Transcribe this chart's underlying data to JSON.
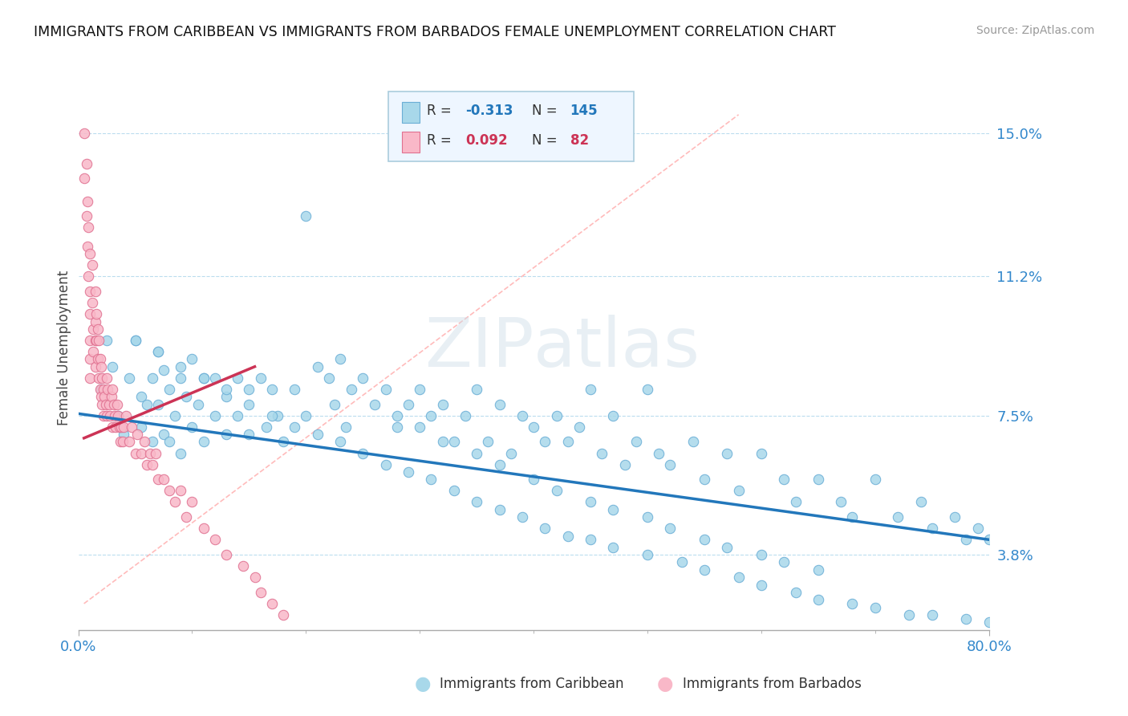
{
  "title": "IMMIGRANTS FROM CARIBBEAN VS IMMIGRANTS FROM BARBADOS FEMALE UNEMPLOYMENT CORRELATION CHART",
  "source": "Source: ZipAtlas.com",
  "ylabel": "Female Unemployment",
  "yticks": [
    0.038,
    0.075,
    0.112,
    0.15
  ],
  "ytick_labels": [
    "3.8%",
    "7.5%",
    "11.2%",
    "15.0%"
  ],
  "xlim": [
    0.0,
    0.8
  ],
  "ylim": [
    0.018,
    0.168
  ],
  "caribbean_color": "#A8D8EA",
  "caribbean_edge": "#6BAED6",
  "barbados_color": "#F9B8C8",
  "barbados_edge": "#E07090",
  "trend_caribbean_color": "#2277BB",
  "trend_barbados_color": "#CC3355",
  "ref_line_color": "#FFAAAA",
  "watermark_color": "#CCDDEE",
  "legend_bg": "#EEF6FF",
  "legend_edge": "#AACCDD",
  "caribbean_trend_x": [
    0.0,
    0.8
  ],
  "caribbean_trend_y": [
    0.0755,
    0.042
  ],
  "barbados_trend_x": [
    0.005,
    0.155
  ],
  "barbados_trend_y": [
    0.069,
    0.088
  ],
  "ref_line_x": [
    0.005,
    0.58
  ],
  "ref_line_y": [
    0.025,
    0.155
  ],
  "caribbean_x": [
    0.02,
    0.025,
    0.03,
    0.035,
    0.04,
    0.045,
    0.05,
    0.055,
    0.055,
    0.06,
    0.065,
    0.065,
    0.07,
    0.07,
    0.075,
    0.075,
    0.08,
    0.08,
    0.085,
    0.09,
    0.09,
    0.095,
    0.1,
    0.1,
    0.105,
    0.11,
    0.11,
    0.12,
    0.12,
    0.13,
    0.13,
    0.14,
    0.14,
    0.15,
    0.15,
    0.16,
    0.165,
    0.17,
    0.175,
    0.18,
    0.19,
    0.2,
    0.2,
    0.21,
    0.22,
    0.225,
    0.23,
    0.235,
    0.24,
    0.25,
    0.26,
    0.27,
    0.28,
    0.29,
    0.3,
    0.31,
    0.32,
    0.33,
    0.34,
    0.35,
    0.36,
    0.37,
    0.38,
    0.39,
    0.4,
    0.41,
    0.42,
    0.43,
    0.44,
    0.45,
    0.46,
    0.47,
    0.48,
    0.49,
    0.5,
    0.51,
    0.52,
    0.54,
    0.55,
    0.57,
    0.58,
    0.6,
    0.62,
    0.63,
    0.65,
    0.67,
    0.68,
    0.7,
    0.72,
    0.74,
    0.75,
    0.77,
    0.78,
    0.79,
    0.8,
    0.05,
    0.07,
    0.09,
    0.11,
    0.13,
    0.15,
    0.17,
    0.19,
    0.21,
    0.23,
    0.25,
    0.27,
    0.29,
    0.31,
    0.33,
    0.35,
    0.37,
    0.39,
    0.41,
    0.43,
    0.45,
    0.47,
    0.5,
    0.53,
    0.55,
    0.58,
    0.6,
    0.63,
    0.65,
    0.68,
    0.7,
    0.73,
    0.75,
    0.78,
    0.8,
    0.28,
    0.3,
    0.32,
    0.35,
    0.37,
    0.4,
    0.42,
    0.45,
    0.47,
    0.5,
    0.52,
    0.55,
    0.57,
    0.6,
    0.62,
    0.65
  ],
  "caribbean_y": [
    0.082,
    0.095,
    0.088,
    0.075,
    0.07,
    0.085,
    0.095,
    0.08,
    0.072,
    0.078,
    0.085,
    0.068,
    0.092,
    0.078,
    0.087,
    0.07,
    0.082,
    0.068,
    0.075,
    0.085,
    0.065,
    0.08,
    0.09,
    0.072,
    0.078,
    0.085,
    0.068,
    0.085,
    0.075,
    0.08,
    0.07,
    0.085,
    0.075,
    0.082,
    0.07,
    0.085,
    0.072,
    0.082,
    0.075,
    0.068,
    0.082,
    0.128,
    0.075,
    0.088,
    0.085,
    0.078,
    0.09,
    0.072,
    0.082,
    0.085,
    0.078,
    0.082,
    0.072,
    0.078,
    0.082,
    0.075,
    0.078,
    0.068,
    0.075,
    0.082,
    0.068,
    0.078,
    0.065,
    0.075,
    0.072,
    0.068,
    0.075,
    0.068,
    0.072,
    0.082,
    0.065,
    0.075,
    0.062,
    0.068,
    0.082,
    0.065,
    0.062,
    0.068,
    0.058,
    0.065,
    0.055,
    0.065,
    0.058,
    0.052,
    0.058,
    0.052,
    0.048,
    0.058,
    0.048,
    0.052,
    0.045,
    0.048,
    0.042,
    0.045,
    0.042,
    0.095,
    0.092,
    0.088,
    0.085,
    0.082,
    0.078,
    0.075,
    0.072,
    0.07,
    0.068,
    0.065,
    0.062,
    0.06,
    0.058,
    0.055,
    0.052,
    0.05,
    0.048,
    0.045,
    0.043,
    0.042,
    0.04,
    0.038,
    0.036,
    0.034,
    0.032,
    0.03,
    0.028,
    0.026,
    0.025,
    0.024,
    0.022,
    0.022,
    0.021,
    0.02,
    0.075,
    0.072,
    0.068,
    0.065,
    0.062,
    0.058,
    0.055,
    0.052,
    0.05,
    0.048,
    0.045,
    0.042,
    0.04,
    0.038,
    0.036,
    0.034
  ],
  "barbados_x": [
    0.005,
    0.005,
    0.007,
    0.007,
    0.008,
    0.008,
    0.009,
    0.009,
    0.01,
    0.01,
    0.01,
    0.01,
    0.01,
    0.01,
    0.012,
    0.012,
    0.013,
    0.013,
    0.015,
    0.015,
    0.015,
    0.015,
    0.016,
    0.016,
    0.017,
    0.017,
    0.018,
    0.018,
    0.019,
    0.019,
    0.02,
    0.02,
    0.021,
    0.021,
    0.022,
    0.022,
    0.023,
    0.024,
    0.025,
    0.025,
    0.026,
    0.027,
    0.028,
    0.029,
    0.03,
    0.03,
    0.031,
    0.032,
    0.033,
    0.034,
    0.035,
    0.036,
    0.037,
    0.038,
    0.039,
    0.04,
    0.042,
    0.045,
    0.047,
    0.05,
    0.052,
    0.055,
    0.058,
    0.06,
    0.063,
    0.065,
    0.068,
    0.07,
    0.075,
    0.08,
    0.085,
    0.09,
    0.095,
    0.1,
    0.11,
    0.12,
    0.13,
    0.145,
    0.155,
    0.16,
    0.17,
    0.18
  ],
  "barbados_y": [
    0.15,
    0.138,
    0.142,
    0.128,
    0.132,
    0.12,
    0.125,
    0.112,
    0.118,
    0.108,
    0.102,
    0.095,
    0.09,
    0.085,
    0.115,
    0.105,
    0.098,
    0.092,
    0.108,
    0.1,
    0.095,
    0.088,
    0.102,
    0.095,
    0.098,
    0.09,
    0.095,
    0.085,
    0.09,
    0.082,
    0.088,
    0.08,
    0.085,
    0.078,
    0.082,
    0.075,
    0.08,
    0.078,
    0.085,
    0.075,
    0.082,
    0.078,
    0.075,
    0.08,
    0.082,
    0.072,
    0.078,
    0.075,
    0.072,
    0.078,
    0.075,
    0.072,
    0.068,
    0.072,
    0.068,
    0.072,
    0.075,
    0.068,
    0.072,
    0.065,
    0.07,
    0.065,
    0.068,
    0.062,
    0.065,
    0.062,
    0.065,
    0.058,
    0.058,
    0.055,
    0.052,
    0.055,
    0.048,
    0.052,
    0.045,
    0.042,
    0.038,
    0.035,
    0.032,
    0.028,
    0.025,
    0.022
  ]
}
